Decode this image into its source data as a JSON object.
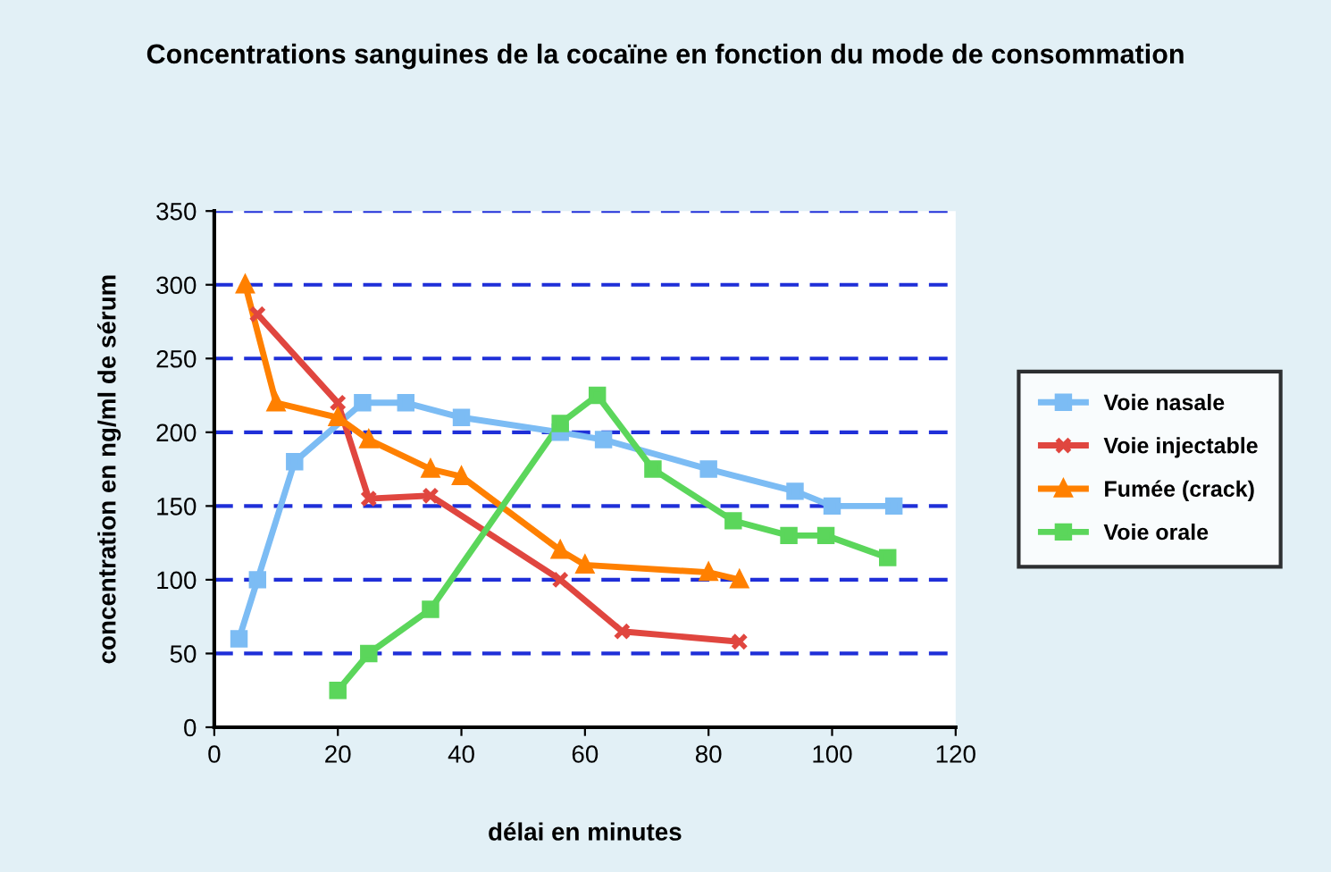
{
  "chart_data": {
    "type": "line",
    "title": "Concentrations sanguines de la cocaïne en fonction du mode de consommation",
    "xlabel": "délai en minutes",
    "ylabel": "concentration en ng/ml de sérum",
    "xlim": [
      0,
      120
    ],
    "xticks": [
      0,
      20,
      40,
      60,
      80,
      100,
      120
    ],
    "ylim": [
      0,
      350
    ],
    "yticks": [
      0,
      50,
      100,
      150,
      200,
      250,
      300,
      350
    ],
    "grid": "y",
    "legend": "right",
    "series": [
      {
        "name": "Voie nasale",
        "color": "#7cbcf4",
        "marker": "square",
        "x": [
          4,
          7,
          13,
          24,
          31,
          40,
          56,
          63,
          80,
          94,
          100,
          110
        ],
        "values": [
          60,
          100,
          180,
          220,
          220,
          210,
          200,
          195,
          175,
          160,
          150,
          150
        ]
      },
      {
        "name": "Voie injectable",
        "color": "#e0463f",
        "marker": "cross",
        "x": [
          7,
          20,
          25,
          35,
          56,
          66,
          85
        ],
        "values": [
          280,
          220,
          155,
          157,
          100,
          65,
          58
        ]
      },
      {
        "name": "Fumée (crack)",
        "color": "#ff8000",
        "marker": "triangle",
        "x": [
          5,
          10,
          20,
          25,
          35,
          40,
          56,
          60,
          80,
          85
        ],
        "values": [
          300,
          220,
          210,
          195,
          175,
          170,
          120,
          110,
          105,
          100
        ]
      },
      {
        "name": "Voie orale",
        "color": "#5bd65b",
        "marker": "square",
        "x": [
          20,
          25,
          35,
          56,
          62,
          71,
          84,
          93,
          99,
          109
        ],
        "values": [
          25,
          50,
          80,
          206,
          225,
          175,
          140,
          130,
          130,
          115
        ]
      }
    ]
  }
}
